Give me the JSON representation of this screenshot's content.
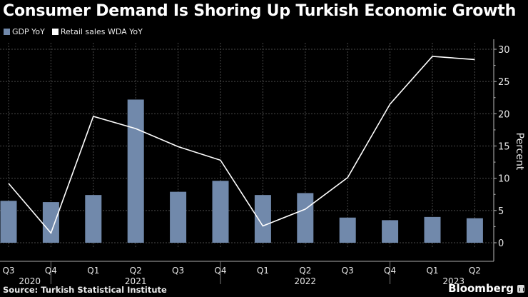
{
  "header": {
    "title": "Consumer Demand Is Shoring Up Turkish Economic Growth"
  },
  "legend": [
    {
      "label": "GDP YoY",
      "color": "#7189ab"
    },
    {
      "label": "Retail sales WDA YoY",
      "color": "#ffffff"
    }
  ],
  "footer": {
    "source": "Source: Turkish Statistical Institute",
    "brand": "Bloomberg"
  },
  "chart_data": {
    "type": "bar",
    "title": "Consumer Demand Is Shoring Up Turkish Economic Growth",
    "xlabel": "",
    "ylabel": "Percent",
    "ylim": [
      0,
      30
    ],
    "yticks": [
      0,
      5,
      10,
      15,
      20,
      25,
      30
    ],
    "grid": true,
    "legend_position": "top-left",
    "categories": [
      "Q3 2020",
      "Q4 2020",
      "Q1 2021",
      "Q2 2021",
      "Q3 2021",
      "Q4 2021",
      "Q1 2022",
      "Q2 2022",
      "Q3 2022",
      "Q4 2022",
      "Q1 2023",
      "Q2 2023"
    ],
    "quarter_labels": [
      "Q3",
      "Q4",
      "Q1",
      "Q2",
      "Q3",
      "Q4",
      "Q1",
      "Q2",
      "Q3",
      "Q4",
      "Q1",
      "Q2"
    ],
    "year_labels": [
      {
        "label": "2020",
        "index": 0.5
      },
      {
        "label": "2021",
        "index": 3
      },
      {
        "label": "2022",
        "index": 7
      },
      {
        "label": "2023",
        "index": 10.5
      }
    ],
    "series": [
      {
        "name": "GDP YoY",
        "type": "bar",
        "color": "#7189ab",
        "values": [
          6.5,
          6.3,
          7.4,
          22.2,
          7.9,
          9.6,
          7.4,
          7.7,
          3.9,
          3.5,
          4.0,
          3.8
        ]
      },
      {
        "name": "Retail sales WDA YoY",
        "type": "line",
        "color": "#ffffff",
        "values": [
          9.2,
          1.5,
          19.6,
          17.7,
          14.9,
          12.8,
          2.6,
          5.2,
          10.1,
          21.5,
          28.9,
          28.4
        ]
      }
    ]
  }
}
